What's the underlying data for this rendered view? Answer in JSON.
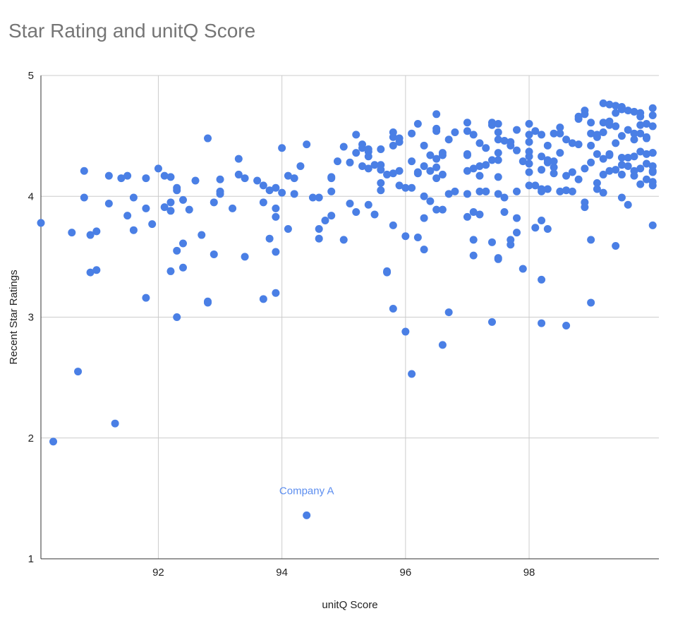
{
  "chart_data": {
    "type": "scatter",
    "title": "Star Rating and unitQ Score",
    "xlabel": "unitQ Score",
    "ylabel": "Recent Star Ratings",
    "xlim": [
      90.1,
      100.1
    ],
    "ylim": [
      1,
      5
    ],
    "xticks": [
      "92",
      "94",
      "96",
      "98"
    ],
    "yticks": [
      "1",
      "2",
      "3",
      "4",
      "5"
    ],
    "grid": true,
    "legend": "none",
    "color": "#4a7fe5",
    "annotation": {
      "label": "Company A",
      "x": 94.4,
      "y": 1.36,
      "color": "#5b8def"
    },
    "points": [
      [
        90.1,
        3.78
      ],
      [
        90.3,
        1.97
      ],
      [
        90.6,
        3.7
      ],
      [
        90.7,
        2.55
      ],
      [
        90.8,
        4.21
      ],
      [
        90.8,
        3.99
      ],
      [
        90.9,
        3.37
      ],
      [
        90.9,
        3.68
      ],
      [
        91.0,
        3.71
      ],
      [
        91.0,
        3.39
      ],
      [
        91.2,
        3.94
      ],
      [
        91.2,
        4.17
      ],
      [
        91.3,
        2.12
      ],
      [
        91.4,
        4.15
      ],
      [
        91.5,
        3.84
      ],
      [
        91.5,
        4.17
      ],
      [
        91.6,
        3.72
      ],
      [
        91.6,
        3.99
      ],
      [
        91.8,
        3.16
      ],
      [
        91.8,
        4.15
      ],
      [
        91.8,
        3.9
      ],
      [
        91.9,
        3.77
      ],
      [
        92.0,
        4.23
      ],
      [
        92.1,
        4.17
      ],
      [
        92.1,
        3.91
      ],
      [
        92.2,
        3.95
      ],
      [
        92.2,
        3.88
      ],
      [
        92.2,
        3.38
      ],
      [
        92.2,
        4.16
      ],
      [
        92.3,
        3.0
      ],
      [
        92.3,
        3.55
      ],
      [
        92.3,
        4.05
      ],
      [
        92.3,
        4.07
      ],
      [
        92.4,
        3.97
      ],
      [
        92.4,
        3.41
      ],
      [
        92.4,
        3.61
      ],
      [
        92.5,
        3.89
      ],
      [
        92.6,
        4.13
      ],
      [
        92.7,
        3.68
      ],
      [
        92.8,
        3.12
      ],
      [
        92.8,
        3.13
      ],
      [
        92.8,
        4.48
      ],
      [
        92.9,
        3.95
      ],
      [
        92.9,
        3.52
      ],
      [
        93.0,
        4.04
      ],
      [
        93.0,
        4.14
      ],
      [
        93.0,
        4.02
      ],
      [
        93.2,
        3.9
      ],
      [
        93.3,
        4.31
      ],
      [
        93.3,
        4.18
      ],
      [
        93.4,
        3.5
      ],
      [
        93.4,
        4.15
      ],
      [
        93.6,
        4.13
      ],
      [
        93.7,
        4.09
      ],
      [
        93.7,
        3.15
      ],
      [
        93.7,
        3.95
      ],
      [
        93.8,
        4.05
      ],
      [
        93.8,
        3.65
      ],
      [
        93.9,
        3.2
      ],
      [
        93.9,
        3.54
      ],
      [
        93.9,
        3.83
      ],
      [
        93.9,
        3.9
      ],
      [
        93.9,
        4.07
      ],
      [
        94.0,
        4.03
      ],
      [
        94.0,
        4.4
      ],
      [
        94.1,
        4.17
      ],
      [
        94.1,
        3.73
      ],
      [
        94.2,
        4.15
      ],
      [
        94.2,
        4.02
      ],
      [
        94.3,
        4.25
      ],
      [
        94.4,
        4.43
      ],
      [
        94.5,
        3.99
      ],
      [
        94.6,
        3.99
      ],
      [
        94.6,
        3.73
      ],
      [
        94.6,
        3.65
      ],
      [
        94.7,
        3.8
      ],
      [
        94.8,
        4.15
      ],
      [
        94.8,
        4.04
      ],
      [
        94.8,
        3.84
      ],
      [
        94.8,
        4.16
      ],
      [
        94.9,
        4.29
      ],
      [
        95.0,
        4.41
      ],
      [
        95.0,
        3.64
      ],
      [
        95.1,
        4.28
      ],
      [
        95.1,
        3.94
      ],
      [
        95.2,
        3.87
      ],
      [
        95.2,
        4.36
      ],
      [
        95.2,
        4.51
      ],
      [
        95.3,
        4.43
      ],
      [
        95.3,
        4.25
      ],
      [
        95.3,
        4.4
      ],
      [
        95.4,
        4.33
      ],
      [
        95.4,
        4.37
      ],
      [
        95.4,
        4.23
      ],
      [
        95.4,
        3.93
      ],
      [
        95.4,
        4.39
      ],
      [
        95.5,
        3.85
      ],
      [
        95.5,
        4.26
      ],
      [
        95.6,
        4.39
      ],
      [
        95.6,
        4.22
      ],
      [
        95.6,
        4.26
      ],
      [
        95.6,
        4.11
      ],
      [
        95.6,
        4.05
      ],
      [
        95.7,
        4.18
      ],
      [
        95.7,
        3.38
      ],
      [
        95.7,
        3.37
      ],
      [
        95.8,
        4.19
      ],
      [
        95.8,
        4.49
      ],
      [
        95.8,
        4.42
      ],
      [
        95.8,
        4.53
      ],
      [
        95.8,
        3.76
      ],
      [
        95.8,
        3.07
      ],
      [
        95.9,
        4.09
      ],
      [
        95.9,
        4.48
      ],
      [
        95.9,
        4.45
      ],
      [
        95.9,
        4.21
      ],
      [
        96.0,
        2.88
      ],
      [
        96.0,
        3.67
      ],
      [
        96.0,
        4.07
      ],
      [
        96.1,
        4.29
      ],
      [
        96.1,
        4.07
      ],
      [
        96.1,
        4.52
      ],
      [
        96.1,
        2.53
      ],
      [
        96.2,
        4.19
      ],
      [
        96.2,
        3.66
      ],
      [
        96.2,
        4.2
      ],
      [
        96.2,
        4.6
      ],
      [
        96.3,
        4.25
      ],
      [
        96.3,
        3.82
      ],
      [
        96.3,
        4.42
      ],
      [
        96.3,
        4.0
      ],
      [
        96.3,
        3.56
      ],
      [
        96.4,
        4.21
      ],
      [
        96.4,
        3.96
      ],
      [
        96.4,
        4.34
      ],
      [
        96.5,
        4.31
      ],
      [
        96.5,
        4.54
      ],
      [
        96.5,
        4.56
      ],
      [
        96.5,
        4.68
      ],
      [
        96.5,
        4.15
      ],
      [
        96.5,
        3.89
      ],
      [
        96.5,
        4.24
      ],
      [
        96.6,
        4.36
      ],
      [
        96.6,
        4.18
      ],
      [
        96.6,
        4.34
      ],
      [
        96.6,
        2.77
      ],
      [
        96.6,
        3.89
      ],
      [
        96.7,
        4.47
      ],
      [
        96.7,
        4.02
      ],
      [
        96.7,
        3.04
      ],
      [
        96.8,
        4.04
      ],
      [
        96.8,
        4.53
      ],
      [
        97.0,
        4.34
      ],
      [
        97.0,
        4.21
      ],
      [
        97.0,
        4.35
      ],
      [
        97.0,
        4.02
      ],
      [
        97.0,
        3.83
      ],
      [
        97.0,
        4.61
      ],
      [
        97.0,
        4.54
      ],
      [
        97.1,
        3.87
      ],
      [
        97.1,
        3.64
      ],
      [
        97.1,
        3.51
      ],
      [
        97.1,
        4.51
      ],
      [
        97.1,
        4.23
      ],
      [
        97.2,
        4.44
      ],
      [
        97.2,
        4.17
      ],
      [
        97.2,
        4.25
      ],
      [
        97.2,
        3.85
      ],
      [
        97.2,
        4.04
      ],
      [
        97.3,
        4.26
      ],
      [
        97.3,
        4.4
      ],
      [
        97.3,
        4.04
      ],
      [
        97.3,
        4.04
      ],
      [
        97.4,
        4.3
      ],
      [
        97.4,
        3.62
      ],
      [
        97.4,
        4.61
      ],
      [
        97.4,
        2.96
      ],
      [
        97.4,
        4.59
      ],
      [
        97.5,
        4.16
      ],
      [
        97.5,
        4.36
      ],
      [
        97.5,
        4.47
      ],
      [
        97.5,
        4.6
      ],
      [
        97.5,
        4.53
      ],
      [
        97.5,
        4.3
      ],
      [
        97.5,
        4.02
      ],
      [
        97.5,
        3.48
      ],
      [
        97.5,
        3.49
      ],
      [
        97.6,
        3.87
      ],
      [
        97.6,
        3.99
      ],
      [
        97.6,
        4.46
      ],
      [
        97.7,
        3.6
      ],
      [
        97.7,
        3.64
      ],
      [
        97.7,
        4.45
      ],
      [
        97.7,
        4.42
      ],
      [
        97.8,
        3.7
      ],
      [
        97.8,
        4.04
      ],
      [
        97.8,
        4.55
      ],
      [
        97.8,
        4.38
      ],
      [
        97.8,
        3.82
      ],
      [
        97.9,
        3.4
      ],
      [
        97.9,
        4.29
      ],
      [
        98.0,
        4.33
      ],
      [
        98.0,
        4.09
      ],
      [
        98.0,
        4.27
      ],
      [
        98.0,
        4.2
      ],
      [
        98.0,
        4.51
      ],
      [
        98.0,
        4.6
      ],
      [
        98.0,
        4.37
      ],
      [
        98.0,
        4.45
      ],
      [
        98.1,
        4.09
      ],
      [
        98.1,
        4.54
      ],
      [
        98.1,
        3.74
      ],
      [
        98.2,
        4.04
      ],
      [
        98.2,
        4.33
      ],
      [
        98.2,
        4.22
      ],
      [
        98.2,
        4.06
      ],
      [
        98.2,
        3.8
      ],
      [
        98.2,
        3.31
      ],
      [
        98.2,
        4.51
      ],
      [
        98.2,
        2.95
      ],
      [
        98.3,
        4.42
      ],
      [
        98.3,
        4.3
      ],
      [
        98.3,
        3.73
      ],
      [
        98.3,
        4.06
      ],
      [
        98.3,
        4.28
      ],
      [
        98.4,
        4.52
      ],
      [
        98.4,
        4.24
      ],
      [
        98.4,
        4.19
      ],
      [
        98.4,
        4.29
      ],
      [
        98.5,
        4.57
      ],
      [
        98.5,
        4.36
      ],
      [
        98.5,
        4.52
      ],
      [
        98.5,
        4.04
      ],
      [
        98.6,
        4.47
      ],
      [
        98.6,
        4.17
      ],
      [
        98.6,
        4.05
      ],
      [
        98.6,
        2.93
      ],
      [
        98.7,
        4.2
      ],
      [
        98.7,
        4.44
      ],
      [
        98.7,
        4.04
      ],
      [
        98.8,
        4.66
      ],
      [
        98.8,
        4.64
      ],
      [
        98.8,
        4.14
      ],
      [
        98.8,
        4.43
      ],
      [
        98.9,
        4.68
      ],
      [
        98.9,
        4.23
      ],
      [
        98.9,
        4.71
      ],
      [
        98.9,
        3.95
      ],
      [
        98.9,
        3.91
      ],
      [
        99.0,
        4.61
      ],
      [
        99.0,
        4.52
      ],
      [
        99.0,
        4.42
      ],
      [
        99.0,
        3.64
      ],
      [
        99.0,
        3.12
      ],
      [
        99.0,
        4.28
      ],
      [
        99.1,
        4.35
      ],
      [
        99.1,
        4.11
      ],
      [
        99.1,
        4.51
      ],
      [
        99.1,
        4.49
      ],
      [
        99.1,
        4.06
      ],
      [
        99.2,
        4.77
      ],
      [
        99.2,
        4.61
      ],
      [
        99.2,
        4.53
      ],
      [
        99.2,
        4.31
      ],
      [
        99.2,
        4.18
      ],
      [
        99.2,
        4.03
      ],
      [
        99.3,
        4.76
      ],
      [
        99.3,
        4.59
      ],
      [
        99.3,
        4.35
      ],
      [
        99.3,
        4.21
      ],
      [
        99.3,
        4.62
      ],
      [
        99.3,
        4.34
      ],
      [
        99.4,
        4.75
      ],
      [
        99.4,
        4.58
      ],
      [
        99.4,
        4.44
      ],
      [
        99.4,
        4.22
      ],
      [
        99.4,
        3.59
      ],
      [
        99.4,
        4.69
      ],
      [
        99.5,
        4.72
      ],
      [
        99.5,
        4.26
      ],
      [
        99.5,
        4.32
      ],
      [
        99.5,
        4.74
      ],
      [
        99.5,
        4.5
      ],
      [
        99.5,
        4.18
      ],
      [
        99.5,
        3.99
      ],
      [
        99.6,
        4.71
      ],
      [
        99.6,
        4.25
      ],
      [
        99.6,
        3.93
      ],
      [
        99.6,
        4.55
      ],
      [
        99.6,
        4.32
      ],
      [
        99.7,
        4.7
      ],
      [
        99.7,
        4.52
      ],
      [
        99.7,
        4.33
      ],
      [
        99.7,
        4.21
      ],
      [
        99.7,
        4.47
      ],
      [
        99.7,
        4.17
      ],
      [
        99.8,
        4.52
      ],
      [
        99.8,
        4.37
      ],
      [
        99.8,
        4.23
      ],
      [
        99.8,
        4.1
      ],
      [
        99.8,
        4.69
      ],
      [
        99.8,
        4.66
      ],
      [
        99.8,
        4.59
      ],
      [
        99.9,
        4.6
      ],
      [
        99.9,
        4.49
      ],
      [
        99.9,
        4.35
      ],
      [
        99.9,
        4.14
      ],
      [
        99.9,
        4.48
      ],
      [
        99.9,
        4.27
      ],
      [
        100.0,
        4.73
      ],
      [
        100.0,
        4.2
      ],
      [
        100.0,
        4.09
      ],
      [
        100.0,
        4.21
      ],
      [
        100.0,
        3.76
      ],
      [
        100.0,
        4.12
      ],
      [
        100.0,
        4.36
      ],
      [
        100.0,
        4.25
      ],
      [
        100.0,
        4.67
      ],
      [
        100.0,
        4.58
      ],
      [
        100.0,
        4.36
      ],
      [
        94.4,
        1.36
      ]
    ]
  }
}
